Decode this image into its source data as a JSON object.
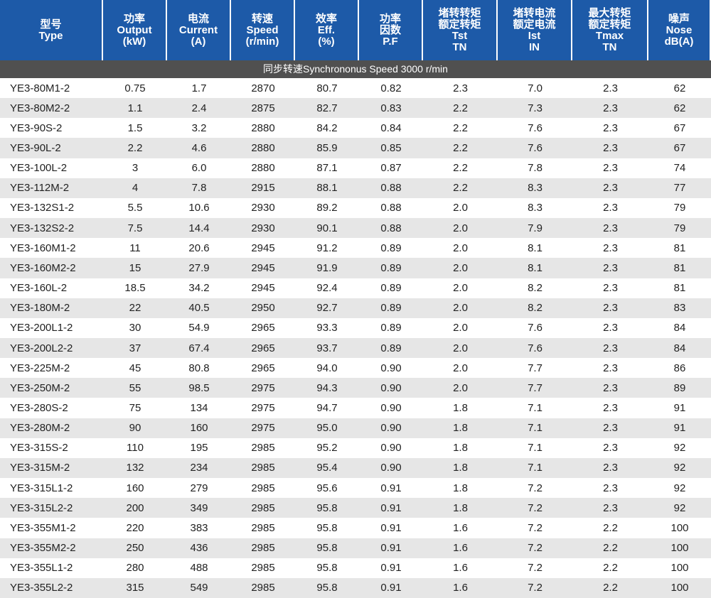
{
  "header": [
    [
      "型号",
      "Type"
    ],
    [
      "功率",
      "Output",
      "(kW)"
    ],
    [
      "电流",
      "Current",
      "(A)"
    ],
    [
      "转速",
      "Speed",
      "(r/min)"
    ],
    [
      "效率",
      "Eff.",
      "(%)"
    ],
    [
      "功率",
      "因数",
      "P.F"
    ],
    [
      "堵转转矩",
      "额定转矩",
      "Tst",
      "TN"
    ],
    [
      "堵转电流",
      "额定电流",
      "Ist",
      "IN"
    ],
    [
      "最大转矩",
      "额定转矩",
      "Tmax",
      "TN"
    ],
    [
      "噪声",
      "Nose",
      "dB(A)"
    ]
  ],
  "section": "同步转速Synchrononus Speed 3000 r/min",
  "rows": [
    [
      "YE3-80M1-2",
      "0.75",
      "1.7",
      "2870",
      "80.7",
      "0.82",
      "2.3",
      "7.0",
      "2.3",
      "62"
    ],
    [
      "YE3-80M2-2",
      "1.1",
      "2.4",
      "2875",
      "82.7",
      "0.83",
      "2.2",
      "7.3",
      "2.3",
      "62"
    ],
    [
      "YE3-90S-2",
      "1.5",
      "3.2",
      "2880",
      "84.2",
      "0.84",
      "2.2",
      "7.6",
      "2.3",
      "67"
    ],
    [
      "YE3-90L-2",
      "2.2",
      "4.6",
      "2880",
      "85.9",
      "0.85",
      "2.2",
      "7.6",
      "2.3",
      "67"
    ],
    [
      "YE3-100L-2",
      "3",
      "6.0",
      "2880",
      "87.1",
      "0.87",
      "2.2",
      "7.8",
      "2.3",
      "74"
    ],
    [
      "YE3-112M-2",
      "4",
      "7.8",
      "2915",
      "88.1",
      "0.88",
      "2.2",
      "8.3",
      "2.3",
      "77"
    ],
    [
      "YE3-132S1-2",
      "5.5",
      "10.6",
      "2930",
      "89.2",
      "0.88",
      "2.0",
      "8.3",
      "2.3",
      "79"
    ],
    [
      "YE3-132S2-2",
      "7.5",
      "14.4",
      "2930",
      "90.1",
      "0.88",
      "2.0",
      "7.9",
      "2.3",
      "79"
    ],
    [
      "YE3-160M1-2",
      "11",
      "20.6",
      "2945",
      "91.2",
      "0.89",
      "2.0",
      "8.1",
      "2.3",
      "81"
    ],
    [
      "YE3-160M2-2",
      "15",
      "27.9",
      "2945",
      "91.9",
      "0.89",
      "2.0",
      "8.1",
      "2.3",
      "81"
    ],
    [
      "YE3-160L-2",
      "18.5",
      "34.2",
      "2945",
      "92.4",
      "0.89",
      "2.0",
      "8.2",
      "2.3",
      "81"
    ],
    [
      "YE3-180M-2",
      "22",
      "40.5",
      "2950",
      "92.7",
      "0.89",
      "2.0",
      "8.2",
      "2.3",
      "83"
    ],
    [
      "YE3-200L1-2",
      "30",
      "54.9",
      "2965",
      "93.3",
      "0.89",
      "2.0",
      "7.6",
      "2.3",
      "84"
    ],
    [
      "YE3-200L2-2",
      "37",
      "67.4",
      "2965",
      "93.7",
      "0.89",
      "2.0",
      "7.6",
      "2.3",
      "84"
    ],
    [
      "YE3-225M-2",
      "45",
      "80.8",
      "2965",
      "94.0",
      "0.90",
      "2.0",
      "7.7",
      "2.3",
      "86"
    ],
    [
      "YE3-250M-2",
      "55",
      "98.5",
      "2975",
      "94.3",
      "0.90",
      "2.0",
      "7.7",
      "2.3",
      "89"
    ],
    [
      "YE3-280S-2",
      "75",
      "134",
      "2975",
      "94.7",
      "0.90",
      "1.8",
      "7.1",
      "2.3",
      "91"
    ],
    [
      "YE3-280M-2",
      "90",
      "160",
      "2975",
      "95.0",
      "0.90",
      "1.8",
      "7.1",
      "2.3",
      "91"
    ],
    [
      "YE3-315S-2",
      "110",
      "195",
      "2985",
      "95.2",
      "0.90",
      "1.8",
      "7.1",
      "2.3",
      "92"
    ],
    [
      "YE3-315M-2",
      "132",
      "234",
      "2985",
      "95.4",
      "0.90",
      "1.8",
      "7.1",
      "2.3",
      "92"
    ],
    [
      "YE3-315L1-2",
      "160",
      "279",
      "2985",
      "95.6",
      "0.91",
      "1.8",
      "7.2",
      "2.3",
      "92"
    ],
    [
      "YE3-315L2-2",
      "200",
      "349",
      "2985",
      "95.8",
      "0.91",
      "1.8",
      "7.2",
      "2.3",
      "92"
    ],
    [
      "YE3-355M1-2",
      "220",
      "383",
      "2985",
      "95.8",
      "0.91",
      "1.6",
      "7.2",
      "2.2",
      "100"
    ],
    [
      "YE3-355M2-2",
      "250",
      "436",
      "2985",
      "95.8",
      "0.91",
      "1.6",
      "7.2",
      "2.2",
      "100"
    ],
    [
      "YE3-355L1-2",
      "280",
      "488",
      "2985",
      "95.8",
      "0.91",
      "1.6",
      "7.2",
      "2.2",
      "100"
    ],
    [
      "YE3-355L2-2",
      "315",
      "549",
      "2985",
      "95.8",
      "0.91",
      "1.6",
      "7.2",
      "2.2",
      "100"
    ]
  ]
}
